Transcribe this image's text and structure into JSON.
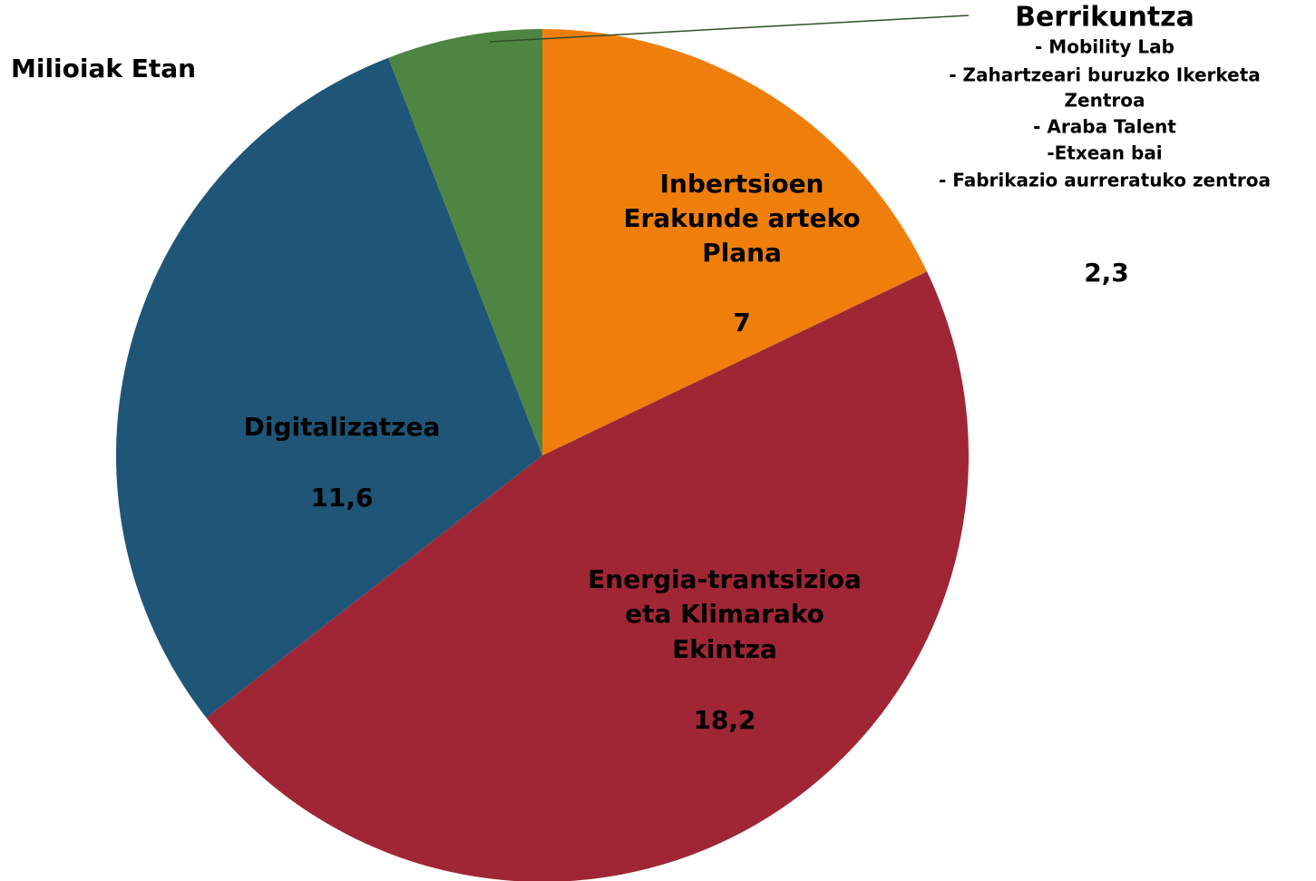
{
  "chart_data": {
    "type": "pie",
    "title": "Milioiak Etan",
    "categories": [
      [
        "Inbertsioen",
        "Erakunde arteko",
        "Plana"
      ],
      [
        "Energia-trantsizioa",
        "eta Klimarako",
        "Ekintza"
      ],
      [
        "Digitalizatzea"
      ],
      [
        "Berrikuntza",
        "- Mobility Lab",
        "- Zahartzeari buruzko Ikerketa",
        "Zentroa",
        "- Araba Talent",
        "-Etxean bai",
        "- Fabrikazio aurreratuko zentroa"
      ]
    ],
    "values": [
      7,
      18.2,
      11.6,
      2.3
    ],
    "value_labels": [
      "7",
      "18,2",
      "11,6",
      "2,3"
    ],
    "colors": [
      "#ef7f0a",
      "#a02636",
      "#1f5677",
      "#4e8542"
    ]
  }
}
